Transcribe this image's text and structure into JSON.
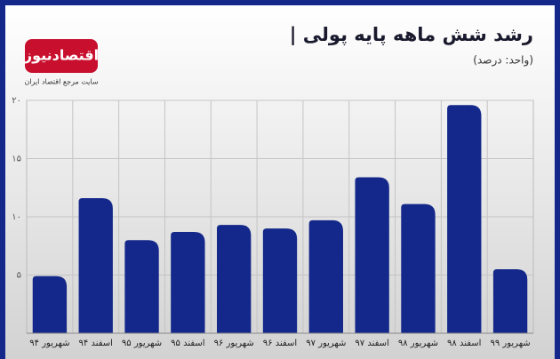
{
  "brand": {
    "name": "اقتصادنیوز",
    "tagline": "سایت مرجع اقتصاد ایران"
  },
  "chart_data": {
    "type": "bar",
    "title": "| رشد شش ماهه پایه پولی",
    "subtitle": "(واحد: درصد)",
    "categories": [
      "شهریور ۹۴",
      "اسفند ۹۴",
      "شهریور ۹۵",
      "اسفند ۹۵",
      "شهریور ۹۶",
      "اسفند ۹۶",
      "شهریور ۹۷",
      "اسفند ۹۷",
      "شهریور ۹۸",
      "اسفند ۹۸",
      "شهریور ۹۹"
    ],
    "values": [
      4.9,
      11.6,
      8.0,
      8.7,
      9.3,
      9.0,
      9.7,
      13.4,
      11.1,
      19.6,
      5.5
    ],
    "color": "#13288a",
    "ylim": [
      0,
      20
    ],
    "yticks": [
      {
        "value": 5,
        "label": "۵"
      },
      {
        "value": 10,
        "label": "۱۰"
      },
      {
        "value": 15,
        "label": "۱۵"
      },
      {
        "value": 20,
        "label": "۲۰"
      }
    ],
    "grid": true
  }
}
